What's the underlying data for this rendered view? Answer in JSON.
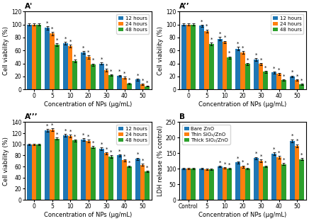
{
  "chart_data": [
    {
      "type": "bar",
      "title": "A'",
      "x_label": "Concentration of NPs (μg/mL)",
      "y_label": "Cell viability (%)",
      "categories": [
        "0",
        "5",
        "10",
        "20",
        "30",
        "40",
        "50"
      ],
      "series": [
        {
          "name": "12 hours",
          "values": [
            100,
            95,
            71,
            57,
            40,
            21,
            15
          ],
          "errors": [
            1.5,
            2.5,
            2.0,
            2.5,
            2.0,
            1.5,
            1.5
          ],
          "annotations": [
            null,
            "*",
            "*",
            "*",
            "*",
            "*",
            "*"
          ]
        },
        {
          "name": "24 hours",
          "values": [
            100,
            86,
            67,
            50,
            30,
            18,
            8
          ],
          "errors": [
            1.5,
            2.5,
            2.0,
            2.5,
            2.0,
            1.5,
            1.0
          ],
          "annotations": [
            null,
            "*",
            "*",
            "*",
            "*",
            "*",
            "*"
          ]
        },
        {
          "name": "48 hours",
          "values": [
            100,
            69,
            44,
            38,
            22,
            9,
            5
          ],
          "errors": [
            1.5,
            2.5,
            2.0,
            2.0,
            1.5,
            1.0,
            0.8
          ],
          "annotations": [
            null,
            "*",
            "*",
            "*",
            "*",
            "*",
            "*"
          ]
        }
      ],
      "ylim": [
        0,
        120
      ],
      "yticks": [
        0,
        20,
        40,
        60,
        80,
        100,
        120
      ],
      "legend": "upper right"
    },
    {
      "type": "bar",
      "title": "A’’",
      "x_label": "Concentration of NPs (μg/mL)",
      "y_label": "Cell viability (%)",
      "categories": [
        "0",
        "5",
        "10",
        "20",
        "30",
        "40",
        "50"
      ],
      "series": [
        {
          "name": "12 hours",
          "values": [
            100,
            98,
            78,
            63,
            46,
            26,
            20
          ],
          "errors": [
            1.5,
            2.0,
            2.5,
            2.5,
            2.0,
            1.5,
            1.5
          ],
          "annotations": [
            null,
            "*",
            "*",
            "*",
            "*",
            "*",
            "*"
          ]
        },
        {
          "name": "24 hours",
          "values": [
            100,
            90,
            73,
            57,
            39,
            24,
            14
          ],
          "errors": [
            1.5,
            2.5,
            2.0,
            2.0,
            2.0,
            1.5,
            1.0
          ],
          "annotations": [
            null,
            "*",
            "*",
            "*",
            "*",
            "*",
            "*"
          ]
        },
        {
          "name": "48 hours",
          "values": [
            100,
            70,
            49,
            39,
            27,
            14,
            8
          ],
          "errors": [
            1.5,
            2.5,
            2.0,
            2.0,
            1.5,
            1.0,
            0.8
          ],
          "annotations": [
            null,
            "*",
            "*",
            "*",
            "*",
            "*",
            "*"
          ]
        }
      ],
      "ylim": [
        0,
        120
      ],
      "yticks": [
        0,
        20,
        40,
        60,
        80,
        100,
        120
      ],
      "legend": "upper right"
    },
    {
      "type": "bar",
      "title": "A’’’",
      "x_label": "Concentration of NPs (μg/mL)",
      "y_label": "Cell viability (%)",
      "categories": [
        "0",
        "5",
        "10",
        "20",
        "30",
        "40",
        "50"
      ],
      "series": [
        {
          "name": "12 hours",
          "values": [
            100,
            125,
            116,
            108,
            92,
            80,
            74
          ],
          "errors": [
            1.5,
            2.5,
            2.5,
            2.5,
            2.0,
            2.0,
            2.0
          ],
          "annotations": [
            null,
            "*",
            "*",
            "*",
            "*",
            "*",
            "*"
          ]
        },
        {
          "name": "24 hours",
          "values": [
            100,
            126,
            115,
            106,
            84,
            71,
            63
          ],
          "errors": [
            1.5,
            2.5,
            2.5,
            2.5,
            2.0,
            2.0,
            2.0
          ],
          "annotations": [
            null,
            "*",
            "*",
            "*",
            "*",
            "*",
            "*"
          ]
        },
        {
          "name": "48 hours",
          "values": [
            100,
            110,
            107,
            95,
            78,
            60,
            51
          ],
          "errors": [
            1.5,
            2.0,
            2.0,
            2.0,
            2.0,
            1.5,
            1.5
          ],
          "annotations": [
            null,
            "*",
            "*",
            "*",
            "*",
            "*",
            "*"
          ]
        }
      ],
      "ylim": [
        0,
        140
      ],
      "yticks": [
        0,
        20,
        40,
        60,
        80,
        100,
        120,
        140
      ],
      "legend": "upper right"
    },
    {
      "type": "bar",
      "title": "B",
      "x_label": "Concentration of NPs (μg/mL)",
      "y_label": "LDH release (% control)",
      "categories": [
        "Control",
        "5",
        "10",
        "20",
        "30",
        "40",
        "50"
      ],
      "series": [
        {
          "name": "Bare ZnO",
          "values": [
            100,
            101,
            107,
            120,
            134,
            148,
            190
          ],
          "errors": [
            2.0,
            2.0,
            3.0,
            4.0,
            4.0,
            5.0,
            5.0
          ],
          "annotations": [
            null,
            null,
            "*",
            "*",
            "*",
            "*",
            "*"
          ]
        },
        {
          "name": "Thin SiO₂/ZnO",
          "values": [
            100,
            99,
            102,
            107,
            126,
            137,
            174
          ],
          "errors": [
            2.0,
            2.0,
            2.5,
            3.5,
            4.0,
            4.5,
            5.0
          ],
          "annotations": [
            null,
            null,
            "*",
            "*",
            "*",
            "*",
            "*"
          ]
        },
        {
          "name": "Thick SiO₂/ZnO",
          "values": [
            100,
            99,
            100,
            101,
            107,
            115,
            131
          ],
          "errors": [
            2.0,
            2.0,
            2.0,
            2.5,
            3.0,
            3.5,
            4.0
          ],
          "annotations": [
            null,
            null,
            "*",
            "*",
            "*",
            "*",
            "*"
          ]
        }
      ],
      "ylim": [
        0,
        250
      ],
      "yticks": [
        0,
        50,
        100,
        150,
        200,
        250
      ],
      "legend": "upper left"
    }
  ]
}
